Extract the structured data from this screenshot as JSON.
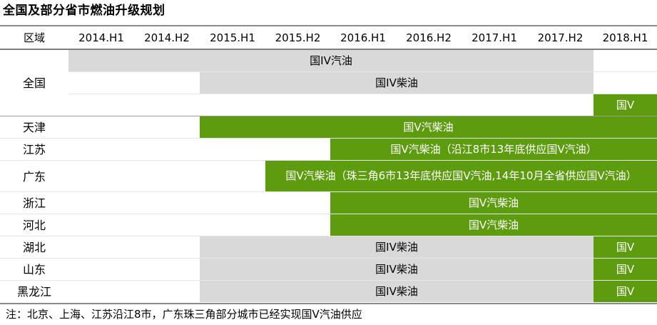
{
  "title": "全国及部分省市燃油升级规划",
  "note": "注：北京、上海、江苏沿江8市，广东珠三角部分城市已经实现国V汽油供应",
  "colors": {
    "grey": "#d9d9d9",
    "green": "#5e9c0f"
  },
  "chart_data": {
    "type": "table",
    "header_label": "区域",
    "periods": [
      "2014.H1",
      "2014.H2",
      "2015.H1",
      "2015.H2",
      "2016.H1",
      "2016.H2",
      "2017.H1",
      "2017.H2",
      "2018.H1"
    ],
    "rows": [
      {
        "region": "全国",
        "bars": [
          {
            "label": "国IV汽油",
            "start": "2014.H1",
            "end": "2017.H2",
            "color": "grey"
          },
          {
            "label": "国IV柴油",
            "start": "2015.H1",
            "end": "2017.H2",
            "color": "grey"
          },
          {
            "label": "国V",
            "start": "2018.H1",
            "end": "2018.H1",
            "color": "green"
          }
        ]
      },
      {
        "region": "天津",
        "bars": [
          {
            "label": "国V汽柴油",
            "start": "2015.H1",
            "end": "2018.H1",
            "color": "green"
          }
        ]
      },
      {
        "region": "江苏",
        "bars": [
          {
            "label": "国V汽柴油（沿江8市13年底供应国V汽油）",
            "start": "2016.H1",
            "end": "2018.H1",
            "color": "green"
          }
        ]
      },
      {
        "region": "广东",
        "bars": [
          {
            "label": "国V汽柴油（珠三角6市13年底供应国V汽油,14年10月全省供应国V汽油）",
            "start": "2015.H2",
            "end": "2018.H1",
            "color": "green"
          }
        ]
      },
      {
        "region": "浙江",
        "bars": [
          {
            "label": "国V汽柴油",
            "start": "2016.H1",
            "end": "2018.H1",
            "color": "green"
          }
        ]
      },
      {
        "region": "河北",
        "bars": [
          {
            "label": "国V汽柴油",
            "start": "2016.H1",
            "end": "2018.H1",
            "color": "green"
          }
        ]
      },
      {
        "region": "湖北",
        "bars": [
          {
            "label": "国IV柴油",
            "start": "2015.H1",
            "end": "2017.H2",
            "color": "grey"
          },
          {
            "label": "国V",
            "start": "2018.H1",
            "end": "2018.H1",
            "color": "green"
          }
        ]
      },
      {
        "region": "山东",
        "bars": [
          {
            "label": "国IV柴油",
            "start": "2015.H1",
            "end": "2017.H2",
            "color": "grey"
          },
          {
            "label": "国V",
            "start": "2018.H1",
            "end": "2018.H1",
            "color": "green"
          }
        ]
      },
      {
        "region": "黑龙江",
        "bars": [
          {
            "label": "国IV柴油",
            "start": "2015.H1",
            "end": "2017.H2",
            "color": "grey"
          },
          {
            "label": "国V",
            "start": "2018.H1",
            "end": "2018.H1",
            "color": "green"
          }
        ]
      }
    ]
  }
}
